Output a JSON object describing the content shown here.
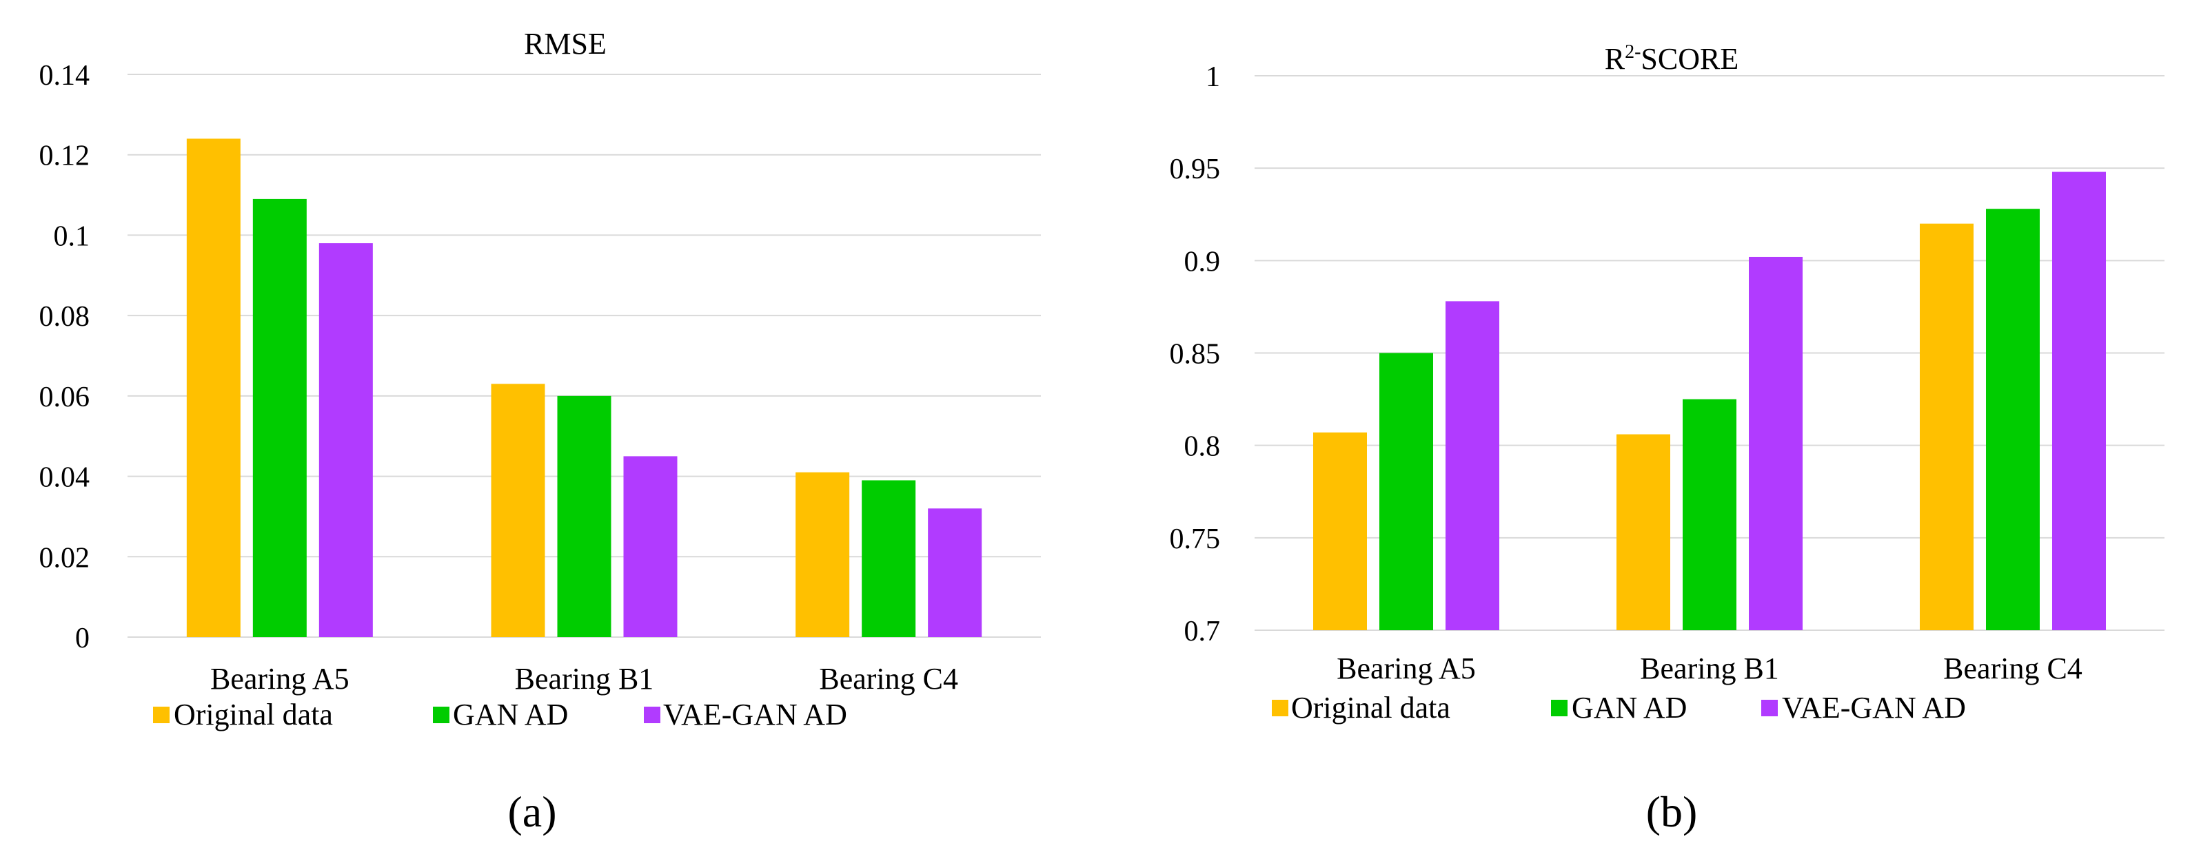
{
  "colors": {
    "original": "#FFC000",
    "gan": "#00CC00",
    "vaegan": "#B13BFF",
    "grid": "#D9D9D9",
    "text": "#000000"
  },
  "panels": [
    {
      "label": "(a)"
    },
    {
      "label": "(b)"
    }
  ],
  "chart_data": [
    {
      "type": "bar",
      "title": "RMSE",
      "xlabel": "",
      "ylabel": "",
      "categories": [
        "Bearing A5",
        "Bearing B1",
        "Bearing C4"
      ],
      "series": [
        {
          "name": "Original data",
          "values": [
            0.124,
            0.063,
            0.041
          ]
        },
        {
          "name": "GAN AD",
          "values": [
            0.109,
            0.06,
            0.039
          ]
        },
        {
          "name": "VAE-GAN AD",
          "values": [
            0.098,
            0.045,
            0.032
          ]
        }
      ],
      "ylim": [
        0,
        0.14
      ],
      "yticks": [
        "0",
        "0.02",
        "0.04",
        "0.06",
        "0.08",
        "0.1",
        "0.12",
        "0.14"
      ],
      "grid": true,
      "legend": "bottom"
    },
    {
      "type": "bar",
      "title": "R",
      "title_sup": "2-",
      "title_suffix": "SCORE",
      "xlabel": "",
      "ylabel": "",
      "categories": [
        "Bearing A5",
        "Bearing B1",
        "Bearing C4"
      ],
      "series": [
        {
          "name": "Original data",
          "values": [
            0.807,
            0.806,
            0.92
          ]
        },
        {
          "name": "GAN AD",
          "values": [
            0.85,
            0.825,
            0.928
          ]
        },
        {
          "name": "VAE-GAN AD",
          "values": [
            0.878,
            0.902,
            0.948
          ]
        }
      ],
      "ylim": [
        0.7,
        1.0
      ],
      "yticks": [
        "0.7",
        "0.75",
        "0.8",
        "0.85",
        "0.9",
        "0.95",
        "1"
      ],
      "grid": true,
      "legend": "bottom"
    }
  ]
}
